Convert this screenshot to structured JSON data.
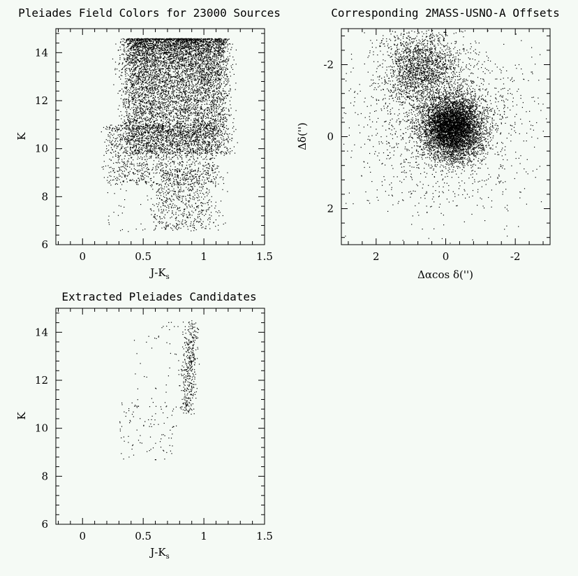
{
  "figure": {
    "panels": [
      {
        "id": "cmd-field",
        "title": "Pleiades Field Colors for 23000 Sources",
        "xlabel": "J-K",
        "xlabel_sub": "s",
        "ylabel": "K"
      },
      {
        "id": "offsets",
        "title": "Corresponding 2MASS-USNO-A Offsets",
        "xlabel": "Δαcos δ('')",
        "ylabel": "Δδ('')"
      },
      {
        "id": "cmd-candidates",
        "title": "Extracted Pleiades Candidates",
        "xlabel": "J-K",
        "xlabel_sub": "s",
        "ylabel": "K"
      }
    ]
  },
  "chart_data": [
    {
      "type": "scatter",
      "title": "Pleiades Field Colors for 23000 Sources",
      "xlabel": "J-Ks",
      "ylabel": "K",
      "xlim": [
        -0.22,
        1.5
      ],
      "ylim": [
        15.0,
        6.0
      ],
      "y_inverted": true,
      "xticks": [
        "0",
        "0.5",
        "1",
        "1.5"
      ],
      "yticks": [
        "6",
        "8",
        "10",
        "12",
        "14"
      ],
      "grid": false,
      "n_points": 23000,
      "points_rendered": 9000,
      "point_color": "#000000",
      "description_of_density": {
        "k_limit": 14.6,
        "color_range_dense": [
          0.3,
          1.2
        ],
        "bright_tail_color": [
          0.6,
          1.05
        ],
        "bright_tail_k_top": 6.6
      }
    },
    {
      "type": "scatter",
      "title": "Corresponding 2MASS-USNO-A Offsets",
      "xlabel": "Δαcos δ('')",
      "ylabel": "Δδ('')",
      "xlim": [
        3.0,
        -3.0
      ],
      "x_inverted": true,
      "ylim": [
        -3.0,
        3.0
      ],
      "xticks": [
        "2",
        "0",
        "-2"
      ],
      "yticks": [
        "-2",
        "0",
        "2"
      ],
      "grid": false,
      "points_rendered": 9000,
      "point_color": "#000000",
      "description_of_density": {
        "core_center": [
          -0.2,
          -0.25
        ],
        "secondary_clump_center": [
          0.8,
          -2.1
        ]
      }
    },
    {
      "type": "scatter",
      "title": "Extracted Pleiades Candidates",
      "xlabel": "J-Ks",
      "ylabel": "K",
      "xlim": [
        -0.22,
        1.5
      ],
      "ylim": [
        15.0,
        6.0
      ],
      "y_inverted": true,
      "xticks": [
        "0",
        "0.5",
        "1",
        "1.5"
      ],
      "yticks": [
        "6",
        "8",
        "10",
        "12",
        "14"
      ],
      "grid": false,
      "points_rendered": 520,
      "point_color": "#000000",
      "description_of_density": {
        "main_sequence_color": 0.9,
        "main_sequence_k": [
          10.6,
          14.5
        ],
        "bright_k_top": 8.7
      }
    }
  ]
}
